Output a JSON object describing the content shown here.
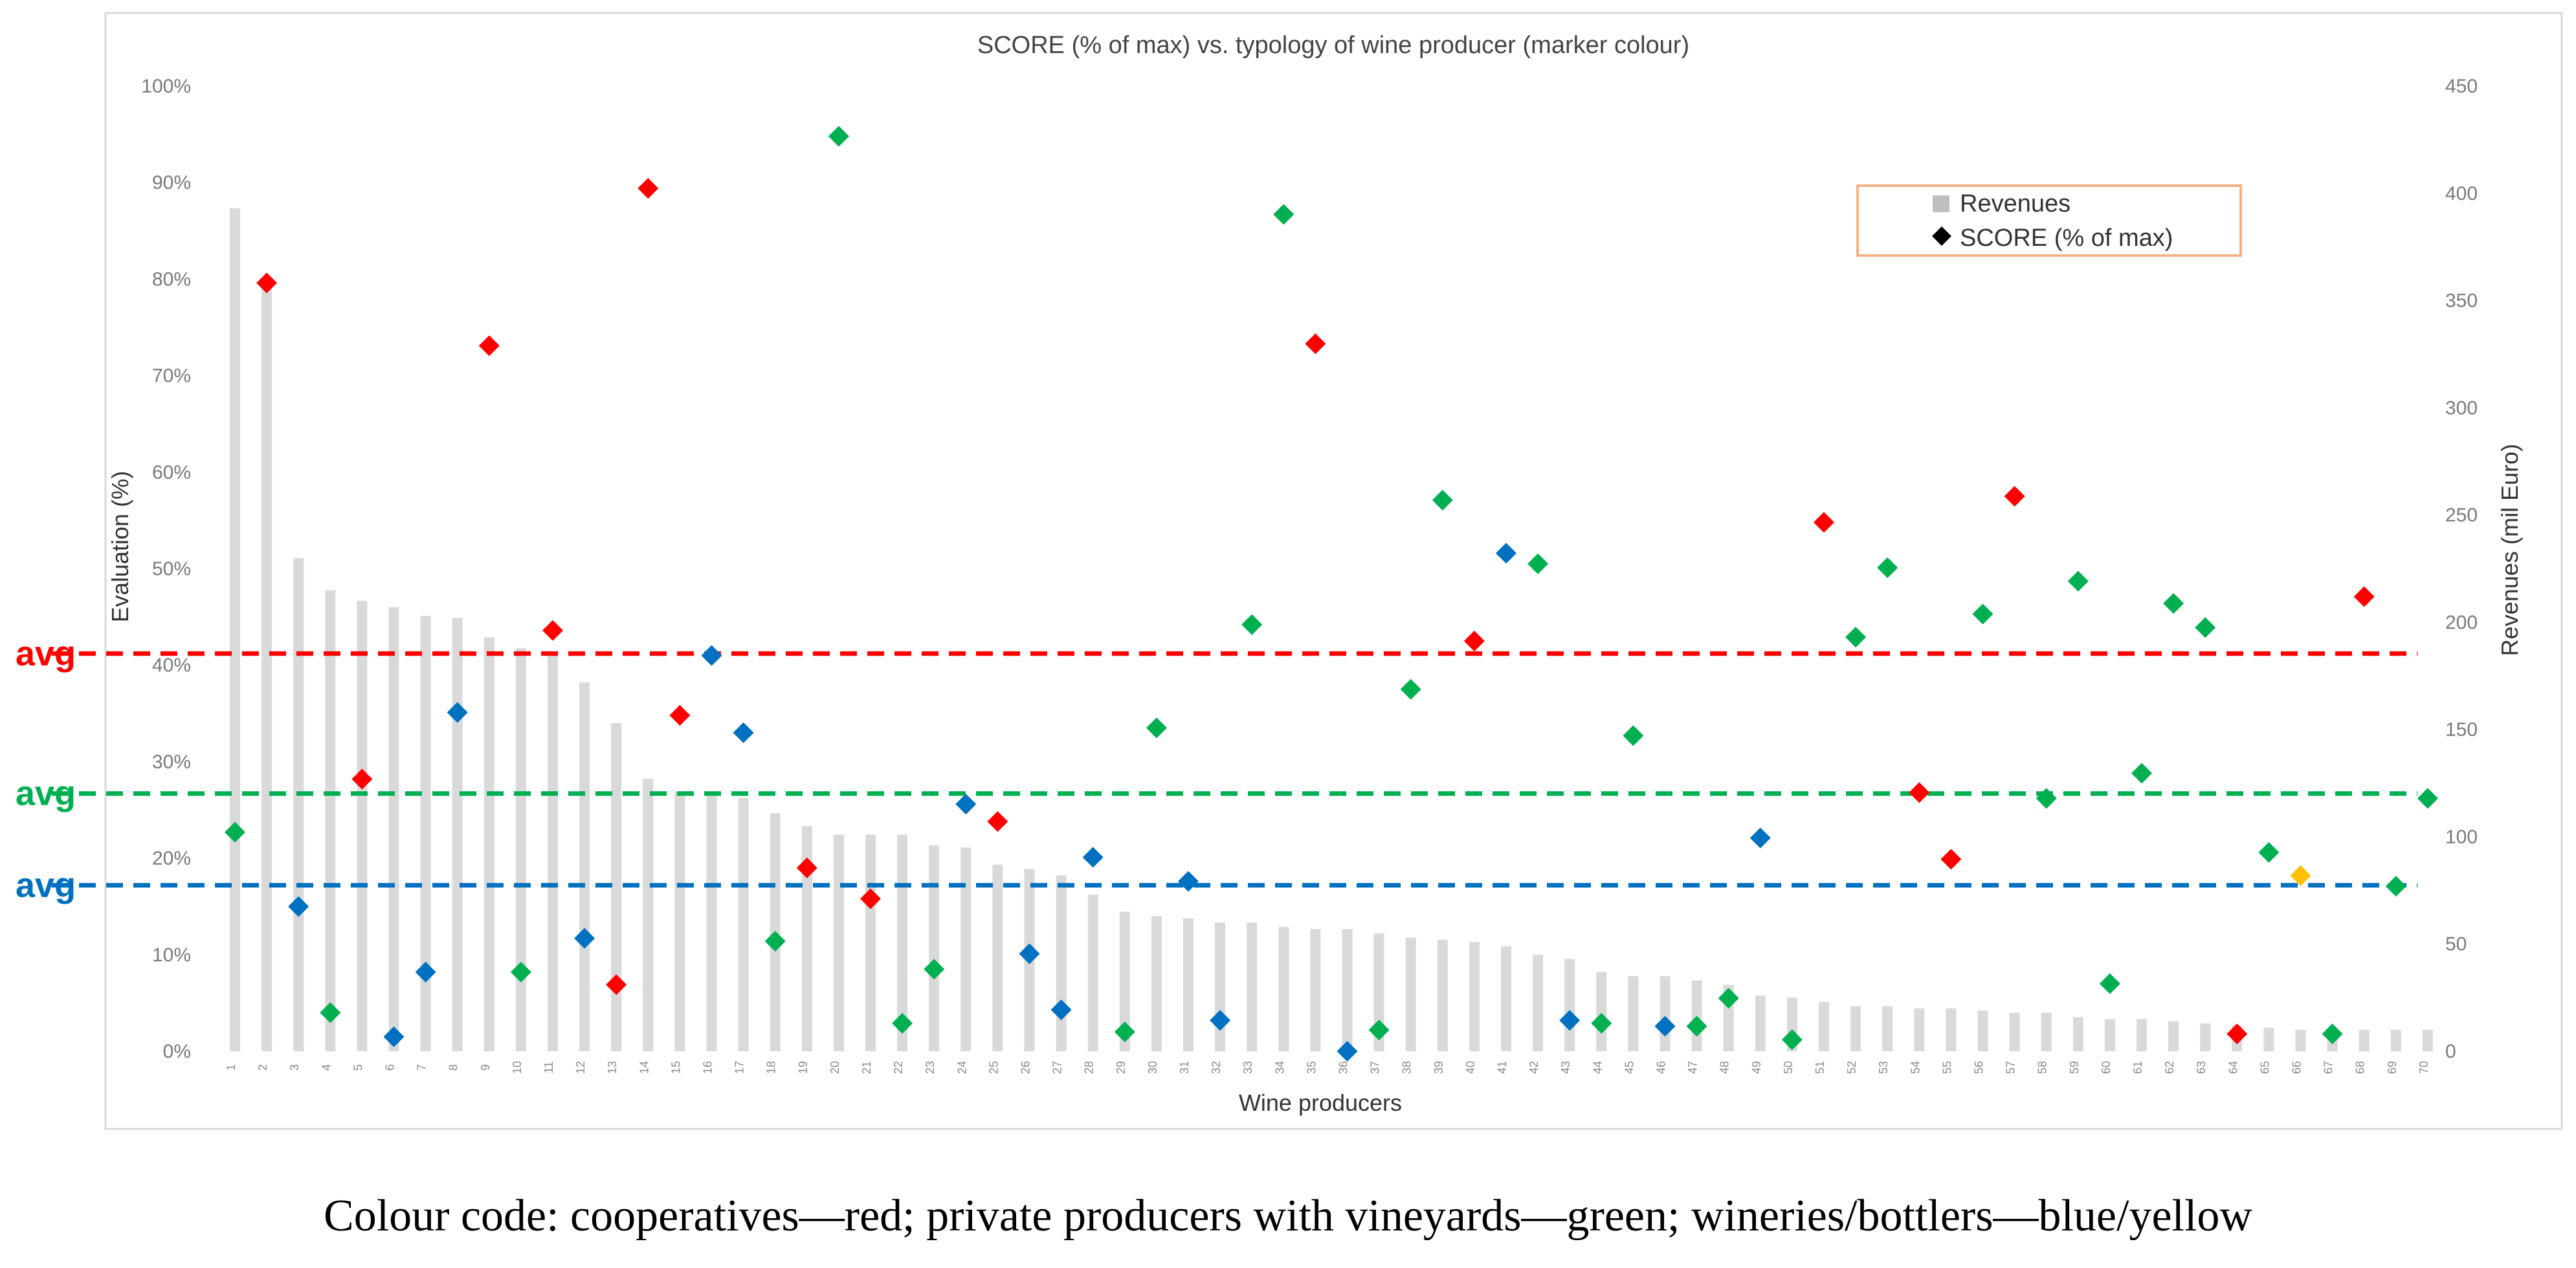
{
  "chart_data": {
    "type": "bar+scatter",
    "title": "SCORE (% of max) vs. typology of wine producer (marker colour)",
    "xlabel": "Wine producers",
    "ylabel": "Evaluation (%)",
    "y2label": "Revenues (mil Euro)",
    "ylim": [
      0,
      100
    ],
    "y2lim": [
      0,
      450
    ],
    "y_ticks": [
      "0%",
      "10%",
      "20%",
      "30%",
      "40%",
      "50%",
      "60%",
      "70%",
      "80%",
      "90%",
      "100%"
    ],
    "y2_ticks": [
      "0",
      "50",
      "100",
      "150",
      "200",
      "250",
      "300",
      "350",
      "400",
      "450"
    ],
    "categories": [
      "1",
      "2",
      "3",
      "4",
      "5",
      "6",
      "7",
      "8",
      "9",
      "10",
      "11",
      "12",
      "13",
      "14",
      "15",
      "16",
      "17",
      "18",
      "19",
      "20",
      "21",
      "22",
      "23",
      "24",
      "25",
      "26",
      "27",
      "28",
      "29",
      "30",
      "31",
      "32",
      "33",
      "34",
      "35",
      "36",
      "37",
      "38",
      "39",
      "40",
      "41",
      "42",
      "43",
      "44",
      "45",
      "46",
      "47",
      "48",
      "49",
      "50",
      "51",
      "52",
      "53",
      "54",
      "55",
      "56",
      "57",
      "58",
      "59",
      "60",
      "61",
      "62",
      "63",
      "64",
      "65",
      "66",
      "67",
      "68",
      "69",
      "70"
    ],
    "legend": [
      {
        "name": "Revenues",
        "marker": "square",
        "color": "#bfbfbf"
      },
      {
        "name": "SCORE (% of max)",
        "marker": "diamond",
        "color": "#000000"
      }
    ],
    "series": [
      {
        "name": "Revenues",
        "type": "bar",
        "axis": "right",
        "color": "#d9d9d9",
        "values": [
          393,
          358,
          230,
          215,
          210,
          207,
          203,
          202,
          193,
          188,
          186,
          172,
          153,
          127,
          121,
          119,
          118,
          111,
          105,
          101,
          101,
          101,
          96,
          95,
          87,
          85,
          82,
          73,
          65,
          63,
          62,
          60,
          60,
          58,
          57,
          57,
          55,
          53,
          52,
          51,
          49,
          45,
          43,
          37,
          35,
          35,
          33,
          31,
          26,
          25,
          23,
          21,
          21,
          20,
          20,
          19,
          18,
          18,
          16,
          15,
          15,
          14,
          13,
          12,
          11,
          10,
          10,
          10,
          10,
          10
        ]
      },
      {
        "name": "SCORE (% of max)",
        "type": "scatter",
        "axis": "left",
        "values": [
          22.7,
          79.6,
          15.0,
          4.0,
          28.2,
          1.5,
          8.2,
          35.1,
          73.1,
          8.2,
          43.6,
          11.7,
          6.9,
          89.4,
          34.8,
          41.0,
          33.0,
          11.4,
          19.0,
          94.8,
          15.8,
          2.9,
          8.5,
          25.6,
          23.8,
          10.1,
          4.3,
          20.1,
          2.0,
          33.5,
          17.6,
          3.2,
          44.2,
          86.7,
          73.3,
          0.0,
          2.2,
          37.5,
          57.1,
          42.5,
          51.6,
          50.5,
          3.2,
          2.9,
          32.7,
          2.6,
          2.6,
          5.5,
          22.1,
          1.2,
          54.8,
          42.9,
          50.1,
          26.8,
          19.9,
          45.3,
          57.5,
          26.2,
          48.7,
          7.0,
          28.8,
          46.4,
          43.9,
          1.8,
          20.6,
          18.2,
          1.8,
          47.1,
          17.1,
          26.2
        ],
        "colors": [
          "green",
          "red",
          "blue",
          "green",
          "red",
          "blue",
          "blue",
          "blue",
          "red",
          "green",
          "red",
          "blue",
          "red",
          "red",
          "red",
          "blue",
          "blue",
          "green",
          "red",
          "green",
          "red",
          "green",
          "green",
          "blue",
          "red",
          "blue",
          "blue",
          "blue",
          "green",
          "green",
          "blue",
          "blue",
          "green",
          "green",
          "red",
          "blue",
          "green",
          "green",
          "green",
          "red",
          "blue",
          "green",
          "blue",
          "green",
          "green",
          "blue",
          "green",
          "green",
          "blue",
          "green",
          "red",
          "green",
          "green",
          "red",
          "red",
          "green",
          "red",
          "green",
          "green",
          "green",
          "green",
          "green",
          "green",
          "red",
          "green",
          "yellow",
          "green",
          "red",
          "green",
          "green"
        ]
      }
    ],
    "palette": {
      "red": "#ff0000",
      "green": "#00b050",
      "blue": "#0070c0",
      "yellow": "#ffc000"
    },
    "averages": [
      {
        "label": "avg",
        "group": "cooperatives",
        "value": 41.2,
        "color": "#ff0000"
      },
      {
        "label": "avg",
        "group": "private producers with vineyards",
        "value": 26.7,
        "color": "#00b050"
      },
      {
        "label": "avg",
        "group": "wineries/bottlers",
        "value": 17.2,
        "color": "#0070c0"
      }
    ]
  },
  "caption": "Colour code: cooperatives—red; private producers with vineyards—green; wineries/bottlers—blue/yellow"
}
